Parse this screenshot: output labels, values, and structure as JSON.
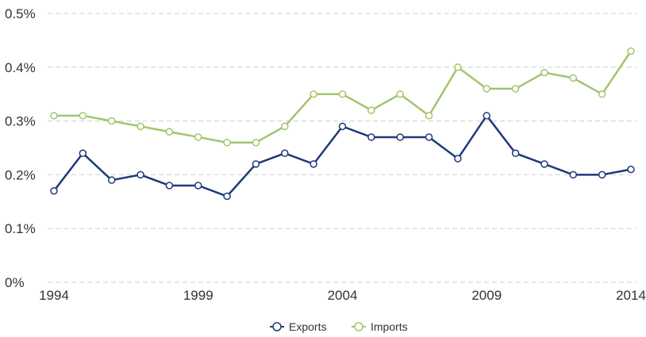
{
  "chart_data": {
    "type": "line",
    "title": "",
    "xlabel": "",
    "ylabel": "",
    "x": [
      1994,
      1995,
      1996,
      1997,
      1998,
      1999,
      2000,
      2001,
      2002,
      2003,
      2004,
      2005,
      2006,
      2007,
      2008,
      2009,
      2010,
      2011,
      2012,
      2013,
      2014
    ],
    "x_ticks": [
      "1994",
      "1999",
      "2004",
      "2009",
      "2014"
    ],
    "y_ticks": [
      "0%",
      "0.1%",
      "0.2%",
      "0.3%",
      "0.4%",
      "0.5%"
    ],
    "ylim": [
      0,
      0.5
    ],
    "y_unit": "%",
    "grid": "horizontal dashed",
    "legend_position": "bottom-center",
    "series": [
      {
        "name": "Exports",
        "color": "#1f3a78",
        "values": [
          0.17,
          0.24,
          0.19,
          0.2,
          0.18,
          0.18,
          0.16,
          0.22,
          0.24,
          0.22,
          0.29,
          0.27,
          0.27,
          0.27,
          0.23,
          0.31,
          0.24,
          0.22,
          0.2,
          0.2,
          0.21
        ]
      },
      {
        "name": "Imports",
        "color": "#a3c46e",
        "values": [
          0.31,
          0.31,
          0.3,
          0.29,
          0.28,
          0.27,
          0.26,
          0.26,
          0.29,
          0.35,
          0.35,
          0.32,
          0.35,
          0.31,
          0.4,
          0.36,
          0.36,
          0.39,
          0.38,
          0.35,
          0.43
        ]
      }
    ]
  }
}
